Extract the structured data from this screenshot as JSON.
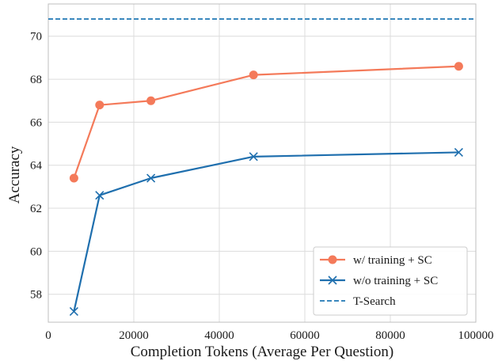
{
  "chart_data": {
    "type": "line",
    "xlabel": "Completion Tokens (Average Per Question)",
    "ylabel": "Accuracy",
    "xlim": [
      0,
      100000
    ],
    "ylim": [
      56.7,
      71.5
    ],
    "xticks": [
      0,
      20000,
      40000,
      60000,
      80000,
      100000
    ],
    "yticks": [
      58,
      60,
      62,
      64,
      66,
      68,
      70
    ],
    "grid": true,
    "legend_position": "lower-right",
    "series": [
      {
        "name": "w/ training + SC",
        "color": "#f47a5a",
        "marker": "circle",
        "x": [
          6000,
          12000,
          24000,
          48000,
          96000
        ],
        "y": [
          63.4,
          66.8,
          67.0,
          68.2,
          68.6
        ]
      },
      {
        "name": "w/o training + SC",
        "color": "#1f6fae",
        "marker": "x",
        "x": [
          6000,
          12000,
          24000,
          48000,
          96000
        ],
        "y": [
          57.2,
          62.6,
          63.4,
          64.4,
          64.6
        ]
      }
    ],
    "reference_lines": [
      {
        "name": "T-Search",
        "y": 70.8,
        "color": "#1f77b4",
        "style": "dashed"
      }
    ]
  }
}
